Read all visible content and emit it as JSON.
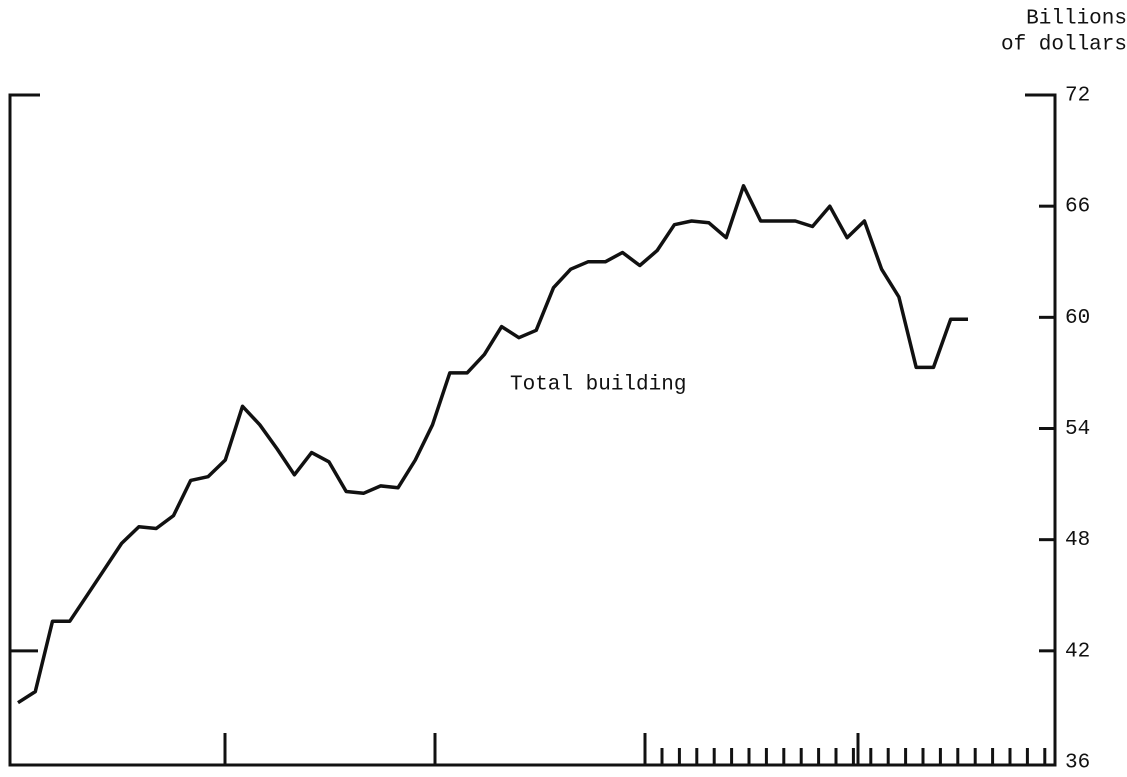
{
  "chart_data": {
    "type": "line",
    "y_label": [
      "Billions",
      "of dollars"
    ],
    "annotation": "Total building",
    "categories": [
      null,
      null,
      null,
      null,
      null,
      null,
      null,
      null,
      null,
      null,
      null,
      null,
      null,
      null,
      null,
      null,
      null,
      null,
      null,
      null,
      null,
      null,
      null,
      null,
      null,
      null,
      null,
      null,
      null,
      null,
      null,
      null,
      null,
      null,
      null,
      null,
      null,
      null,
      null,
      null,
      null,
      null,
      null,
      null,
      null,
      null,
      null,
      null,
      null,
      null,
      null,
      null,
      null,
      null,
      null,
      null
    ],
    "values": [
      39.2,
      39.8,
      43.6,
      43.6,
      45.0,
      46.4,
      47.8,
      48.7,
      48.6,
      49.3,
      51.2,
      51.4,
      52.3,
      55.2,
      54.2,
      52.9,
      51.5,
      52.7,
      52.2,
      50.6,
      50.5,
      50.9,
      50.8,
      52.3,
      54.2,
      57.0,
      57.0,
      58.0,
      59.5,
      58.9,
      59.3,
      61.6,
      62.6,
      63.0,
      63.0,
      63.5,
      62.8,
      63.6,
      65.0,
      65.2,
      65.1,
      64.3,
      67.1,
      65.2,
      65.2,
      65.2,
      64.9,
      66.0,
      64.3,
      65.2,
      62.6,
      61.1,
      57.3,
      57.3,
      59.9,
      59.9
    ],
    "color": "#111111",
    "ylim": [
      36,
      72
    ],
    "yticks": [
      36,
      42,
      48,
      54,
      60,
      66,
      72
    ],
    "y_axis_side": "right",
    "grid": false
  }
}
